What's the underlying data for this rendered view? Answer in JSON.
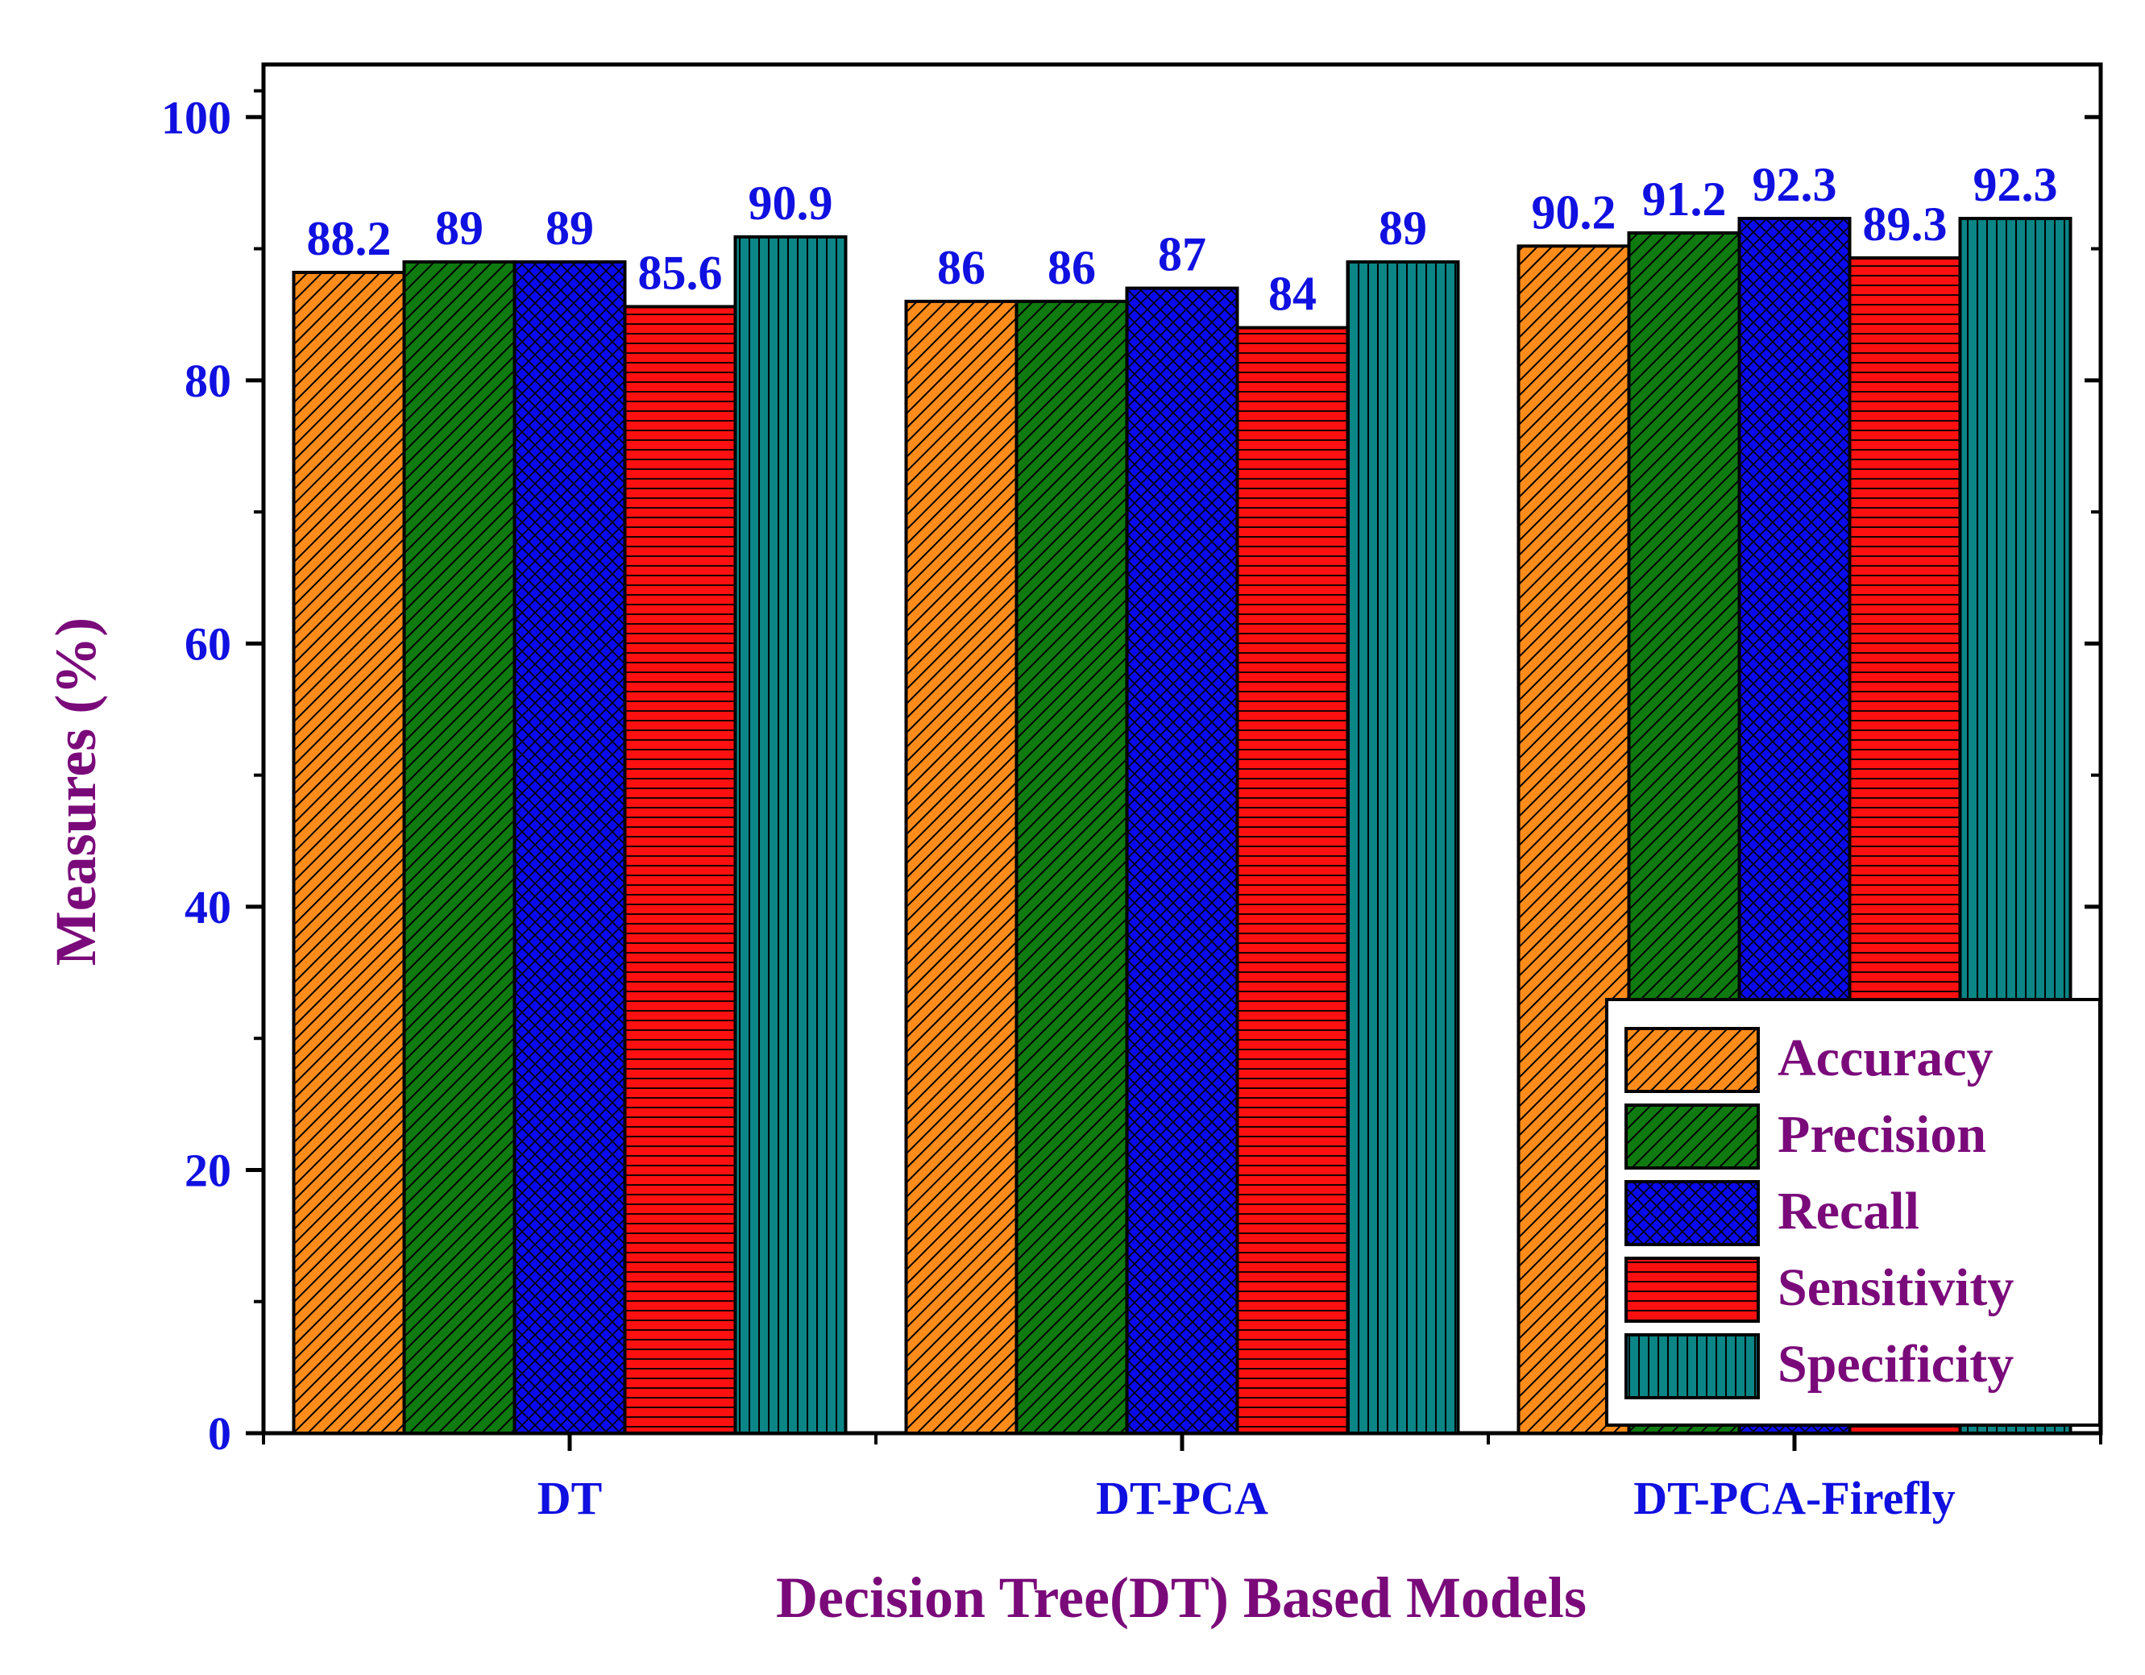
{
  "chart_data": {
    "type": "bar",
    "title": "",
    "xlabel": "Decision Tree(DT) Based Models",
    "ylabel": "Measures (%)",
    "ylim": [
      0,
      104
    ],
    "yticks": [
      0,
      20,
      40,
      60,
      80,
      100
    ],
    "grid": false,
    "legend_position": "bottom-right",
    "categories": [
      "DT",
      "DT-PCA",
      "DT-PCA-Firefly"
    ],
    "series": [
      {
        "name": "Accuracy",
        "color": "#ff8c1a",
        "pattern": "diag",
        "values": [
          88.2,
          86,
          90.2
        ]
      },
      {
        "name": "Precision",
        "color": "#0f7a0f",
        "pattern": "diag",
        "values": [
          89,
          86,
          91.2
        ]
      },
      {
        "name": "Recall",
        "color": "#0a0aee",
        "pattern": "cross",
        "values": [
          89,
          87,
          92.3
        ]
      },
      {
        "name": "Sensitivity",
        "color": "#ff1010",
        "pattern": "horiz",
        "values": [
          85.6,
          84,
          89.3
        ]
      },
      {
        "name": "Specificity",
        "color": "#0b8585",
        "pattern": "vert",
        "values": [
          90.9,
          89,
          92.3
        ]
      }
    ],
    "colors": {
      "tick_label": "#1010e0",
      "axis_title": "#7a0a7a",
      "data_label": "#1010e0",
      "axis": "#000000"
    }
  }
}
